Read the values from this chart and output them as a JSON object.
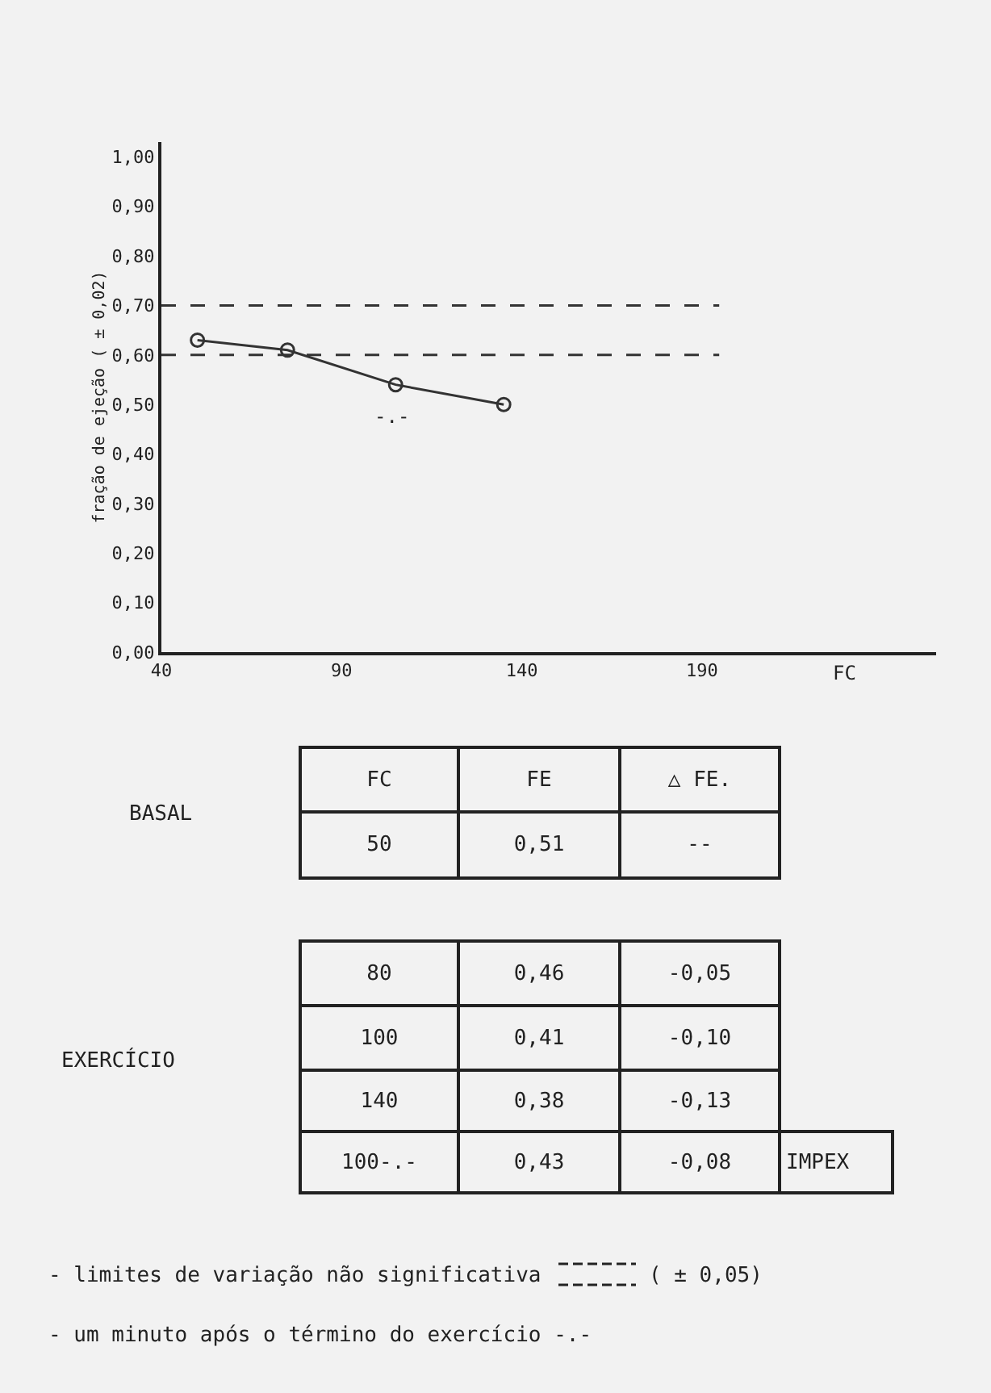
{
  "chart_data": [
    {
      "type": "line",
      "xlabel": "FC",
      "ylabel": "fração de ejeção ( ± 0,02)",
      "x": [
        50,
        75,
        105,
        135
      ],
      "series": [
        {
          "color": "#333333",
          "values": [
            0.63,
            0.61,
            0.54,
            0.5
          ]
        }
      ],
      "xlim": [
        40,
        255
      ],
      "xticks": [
        40,
        90,
        140,
        190
      ],
      "ylim": [
        0,
        1.03
      ],
      "yticks": [
        {
          "value": 0,
          "label": "0,00"
        },
        {
          "value": 0.1,
          "label": "0,10"
        },
        {
          "value": 0.2,
          "label": "0,20"
        },
        {
          "value": 0.3,
          "label": "0,30"
        },
        {
          "value": 0.4,
          "label": "0,40"
        },
        {
          "value": 0.5,
          "label": "0,50"
        },
        {
          "value": 0.6,
          "label": "0,60"
        },
        {
          "value": 0.7,
          "label": "0,70"
        },
        {
          "value": 0.8,
          "label": "0,80"
        },
        {
          "value": 0.9,
          "label": "0,90"
        },
        {
          "value": 1.0,
          "label": "1,00"
        }
      ],
      "ref_lines": [
        {
          "axis": "y",
          "value": 0.7,
          "color": "#333333",
          "line_style": "dashed"
        },
        {
          "axis": "y",
          "value": 0.6,
          "color": "#333333",
          "line_style": "dashed"
        }
      ],
      "annotations": [
        "-.-"
      ],
      "marker": "circle",
      "line_style": "solid"
    },
    {
      "type": "other",
      "annotations": [
        "BASAL",
        "FC",
        "FE",
        "△ FE.",
        "50",
        "0,51",
        "--",
        "EXERCÍCIO",
        "80",
        "0,46",
        "-0,05",
        "100",
        "0,41",
        "-0,10",
        "140",
        "0,38",
        "-0,13",
        "100-.-",
        "0,43",
        "-0,08",
        "IMPEX",
        "- limites de variação não significativa",
        "( ± 0,05)",
        "- um minuto após o término do exercício -.-"
      ]
    }
  ]
}
